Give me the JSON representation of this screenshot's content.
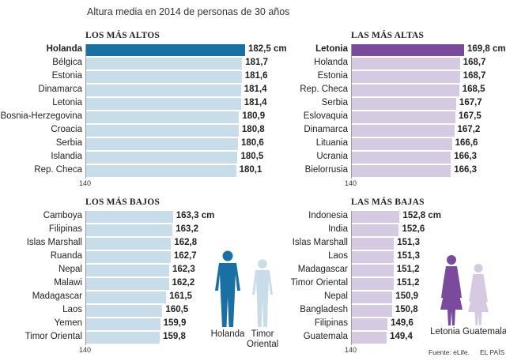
{
  "title": "Altura media en 2014 de personas de 30 años",
  "footer": {
    "source": "Fuente: eLife.",
    "brand": "EL PAÍS"
  },
  "figures": {
    "men": [
      "Holanda",
      "Timor Oriental"
    ],
    "women": [
      "Letonia",
      "Guatemala"
    ]
  },
  "colors": {
    "male_dark": "#1a6fa3",
    "male_light": "#c8dde9",
    "female_dark": "#7a4b9c",
    "female_light": "#d6c9e2"
  },
  "chart_data": [
    {
      "type": "bar",
      "title": "LOS MÁS ALTOS",
      "axis_min_label": "140",
      "xlim": [
        140,
        185
      ],
      "unit": "cm",
      "categories": [
        "Holanda",
        "Bélgica",
        "Estonia",
        "Dinamarca",
        "Letonia",
        "Bosnia-Herzegovina",
        "Croacia",
        "Serbia",
        "Islandia",
        "Rep. Checa"
      ],
      "values": [
        182.5,
        181.7,
        181.6,
        181.4,
        181.4,
        180.9,
        180.8,
        180.6,
        180.5,
        180.1
      ],
      "labels": [
        "182,5 cm",
        "181,7",
        "181,6",
        "181,4",
        "181,4",
        "180,9",
        "180,8",
        "180,6",
        "180,5",
        "180,1"
      ],
      "highlight_index": 0
    },
    {
      "type": "bar",
      "title": "LAS MÁS ALTAS",
      "axis_min_label": "140",
      "xlim": [
        140,
        172
      ],
      "unit": "cm",
      "categories": [
        "Letonia",
        "Holanda",
        "Estonia",
        "Rep. Checa",
        "Serbia",
        "Eslovaquia",
        "Dinamarca",
        "Lituania",
        "Ucrania",
        "Bielorrusia"
      ],
      "values": [
        169.8,
        168.7,
        168.7,
        168.5,
        167.7,
        167.5,
        167.2,
        166.6,
        166.3,
        166.3
      ],
      "labels": [
        "169,8 cm",
        "168,7",
        "168,7",
        "168,5",
        "167,7",
        "167,5",
        "167,2",
        "166,6",
        "166,3",
        "166,3"
      ],
      "highlight_index": 0
    },
    {
      "type": "bar",
      "title": "LOS MÁS BAJOS",
      "axis_min_label": "140",
      "xlim": [
        140,
        185
      ],
      "unit": "cm",
      "categories": [
        "Camboya",
        "Filipinas",
        "Islas Marshall",
        "Ruanda",
        "Nepal",
        "Malawi",
        "Madagascar",
        "Laos",
        "Yemen",
        "Timor Oriental"
      ],
      "values": [
        163.3,
        163.2,
        162.8,
        162.7,
        162.3,
        162.2,
        161.5,
        160.5,
        159.9,
        159.8
      ],
      "labels": [
        "163,3 cm",
        "163,2",
        "162,8",
        "162,7",
        "162,3",
        "162,2",
        "161,5",
        "160,5",
        "159,9",
        "159,8"
      ],
      "highlight_index": -1
    },
    {
      "type": "bar",
      "title": "LAS MÁS BAJAS",
      "axis_min_label": "140",
      "xlim": [
        140,
        172
      ],
      "unit": "cm",
      "categories": [
        "Indonesia",
        "India",
        "Islas Marshall",
        "Laos",
        "Madagascar",
        "Timor Oriental",
        "Nepal",
        "Bangladesh",
        "Filipinas",
        "Guatemala"
      ],
      "values": [
        152.8,
        152.6,
        151.3,
        151.3,
        151.2,
        151.2,
        150.9,
        150.8,
        149.6,
        149.4
      ],
      "labels": [
        "152,8 cm",
        "152,6",
        "151,3",
        "151,3",
        "151,2",
        "151,2",
        "150,9",
        "150,8",
        "149,6",
        "149,4"
      ],
      "highlight_index": -1
    }
  ]
}
